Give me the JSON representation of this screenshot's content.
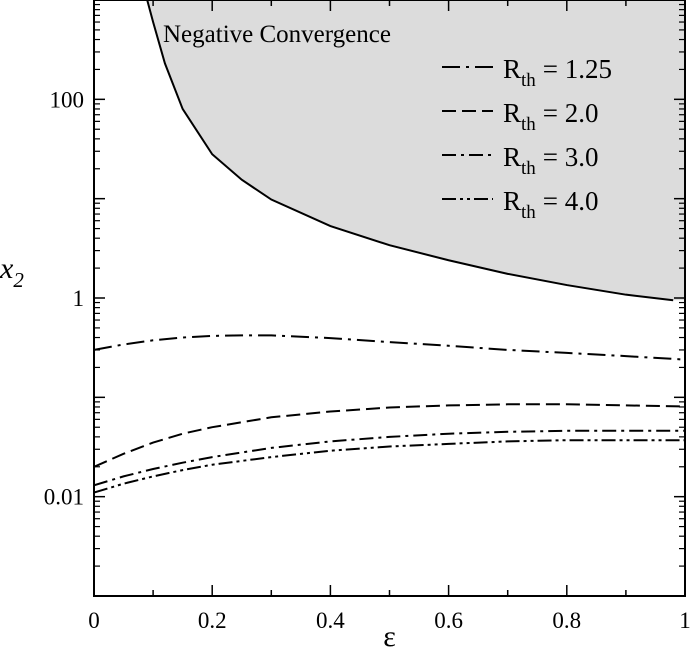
{
  "chart_data": {
    "type": "line",
    "xlabel": "ε",
    "ylabel": {
      "main": "x",
      "sub": "2"
    },
    "xlim": [
      0,
      1
    ],
    "ylim": [
      0.001,
      1000
    ],
    "yscale": "log",
    "grid": false,
    "legend_position": "top-right",
    "x_ticks": [
      {
        "value": 0,
        "label": "0"
      },
      {
        "value": 0.2,
        "label": "0.2"
      },
      {
        "value": 0.4,
        "label": "0.4"
      },
      {
        "value": 0.6,
        "label": "0.6"
      },
      {
        "value": 0.8,
        "label": "0.8"
      },
      {
        "value": 1,
        "label": "1"
      }
    ],
    "y_ticks": [
      {
        "value": 0.01,
        "label": "0.01"
      },
      {
        "value": 1,
        "label": "1"
      },
      {
        "value": 100,
        "label": "100"
      }
    ],
    "region": {
      "label": "Negative Convergence",
      "fill": "#dcdcdc",
      "boundary": {
        "x": [
          0.09,
          0.1,
          0.12,
          0.15,
          0.2,
          0.25,
          0.3,
          0.4,
          0.5,
          0.6,
          0.7,
          0.8,
          0.9,
          0.98
        ],
        "y": [
          1000,
          600,
          230,
          80,
          28,
          15.5,
          9.8,
          5.3,
          3.4,
          2.4,
          1.75,
          1.35,
          1.08,
          0.95
        ]
      }
    },
    "series": [
      {
        "name_main": "R",
        "name_sub": "th",
        "name_value": "= 1.25",
        "dash": "18,6,3,6",
        "x": [
          0,
          0.05,
          0.1,
          0.15,
          0.2,
          0.25,
          0.3,
          0.4,
          0.5,
          0.6,
          0.7,
          0.8,
          0.9,
          1
        ],
        "y": [
          0.3,
          0.34,
          0.375,
          0.4,
          0.415,
          0.42,
          0.42,
          0.395,
          0.36,
          0.33,
          0.3,
          0.28,
          0.26,
          0.24
        ]
      },
      {
        "name_main": "R",
        "name_sub": "th",
        "name_value": "= 2.0",
        "dash": "14,6",
        "x": [
          0,
          0.05,
          0.1,
          0.15,
          0.2,
          0.3,
          0.4,
          0.5,
          0.6,
          0.7,
          0.8,
          0.9,
          1
        ],
        "y": [
          0.02,
          0.027,
          0.035,
          0.043,
          0.05,
          0.063,
          0.072,
          0.079,
          0.083,
          0.085,
          0.085,
          0.083,
          0.081
        ]
      },
      {
        "name_main": "R",
        "name_sub": "th",
        "name_value": "= 3.0",
        "dash": "14,5,3,5",
        "x": [
          0,
          0.05,
          0.1,
          0.15,
          0.2,
          0.3,
          0.4,
          0.5,
          0.6,
          0.7,
          0.8,
          0.9,
          1
        ],
        "y": [
          0.013,
          0.016,
          0.019,
          0.022,
          0.025,
          0.031,
          0.036,
          0.04,
          0.043,
          0.045,
          0.046,
          0.046,
          0.046
        ]
      },
      {
        "name_main": "R",
        "name_sub": "th",
        "name_value": "= 4.0",
        "dash": "14,4,3,4,3,4",
        "x": [
          0,
          0.05,
          0.1,
          0.15,
          0.2,
          0.3,
          0.4,
          0.5,
          0.6,
          0.7,
          0.8,
          0.9,
          1
        ],
        "y": [
          0.011,
          0.0135,
          0.016,
          0.0185,
          0.021,
          0.025,
          0.029,
          0.032,
          0.034,
          0.036,
          0.037,
          0.037,
          0.037
        ]
      }
    ]
  }
}
